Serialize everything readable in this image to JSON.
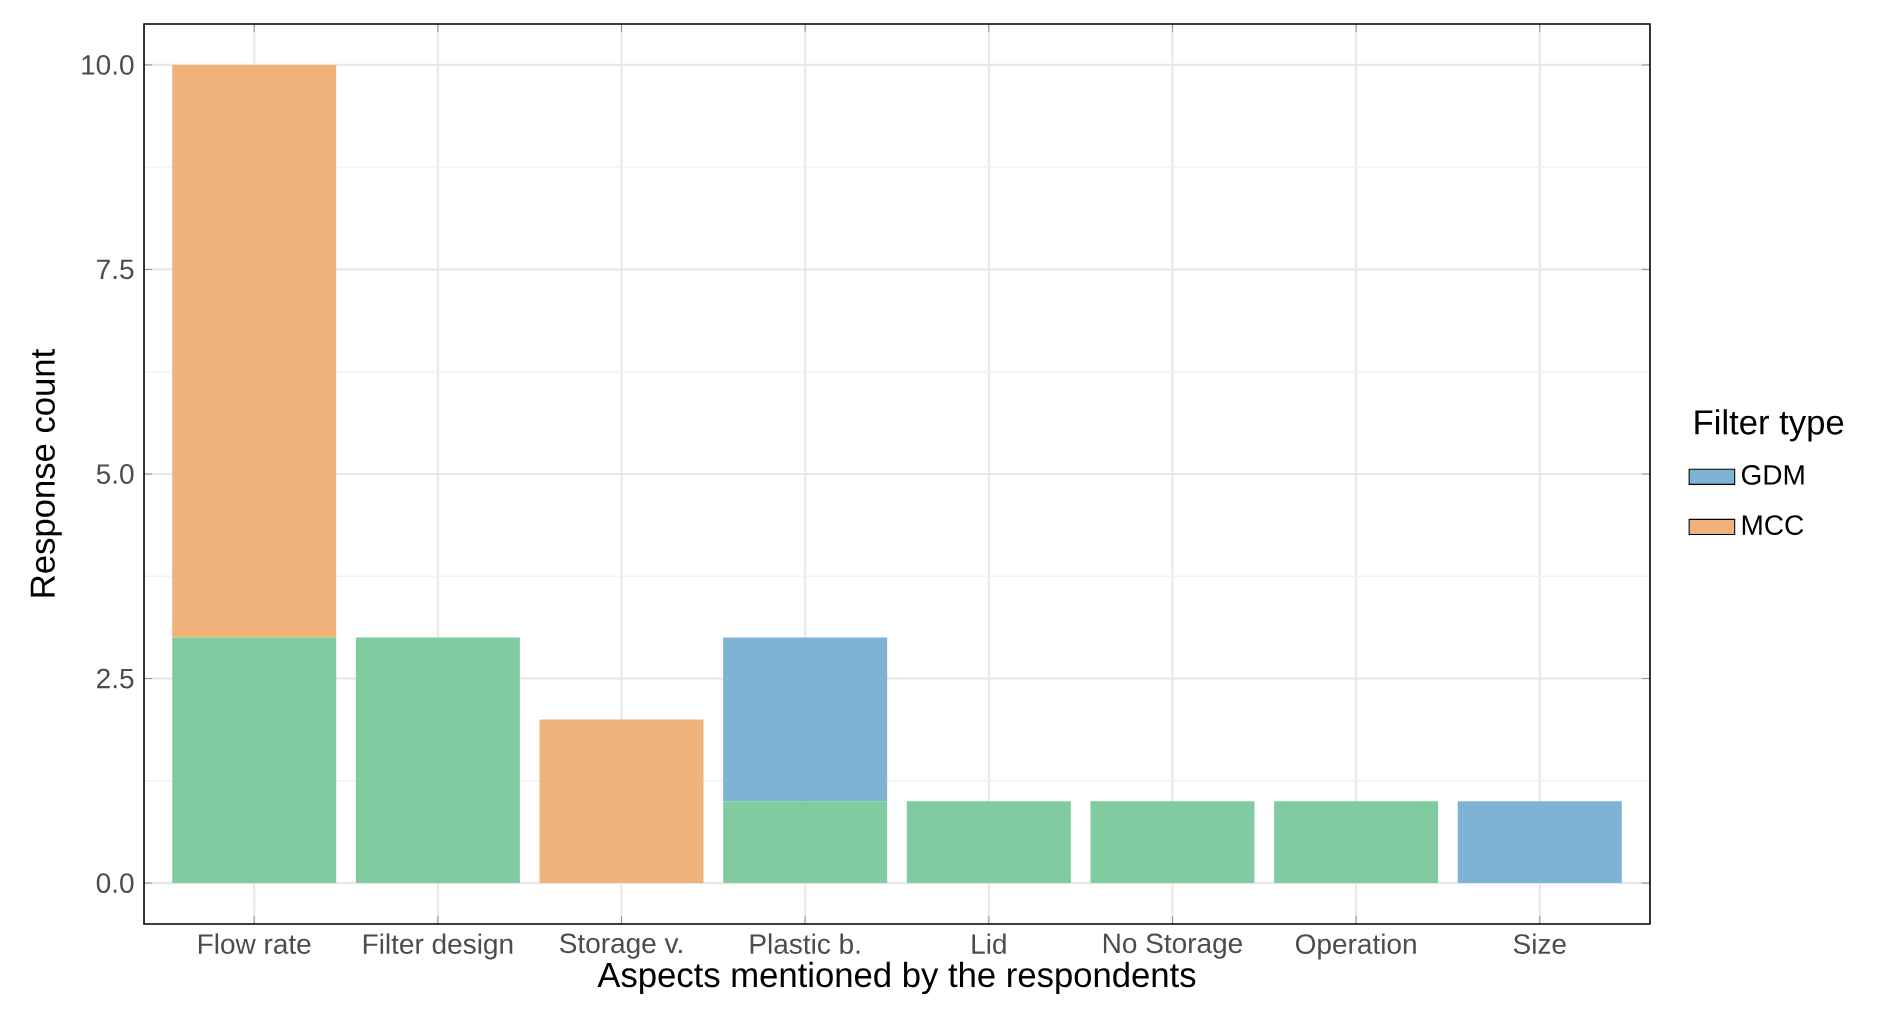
{
  "chart_data": {
    "type": "bar",
    "stacked": true,
    "xlabel": "Aspects mentioned by the respondents",
    "ylabel": "Response count",
    "legend_title": "Filter type",
    "legend": "right",
    "grid": true,
    "categories": [
      "Flow rate",
      "Filter design",
      "Storage v.",
      "Plastic b.",
      "Lid",
      "No Storage",
      "Operation",
      "Size"
    ],
    "series": [
      {
        "color": "#80cba0",
        "values": [
          3,
          3,
          null,
          1,
          1,
          1,
          1,
          null
        ]
      },
      {
        "name": "GDM",
        "color": "#7fb2d5",
        "values": [
          null,
          null,
          null,
          2,
          null,
          null,
          null,
          1
        ]
      },
      {
        "name": "MCC",
        "color": "#efb27b",
        "values": [
          7,
          null,
          2,
          null,
          null,
          null,
          null,
          null
        ]
      }
    ],
    "ylim": [
      -0.5,
      10.5
    ],
    "yticks": [
      {
        "value": 0,
        "label": "0.0"
      },
      {
        "value": 2.5,
        "label": "2.5"
      },
      {
        "value": 5,
        "label": "5.0"
      },
      {
        "value": 7.5,
        "label": "7.5"
      },
      {
        "value": 10,
        "label": "10.0"
      }
    ]
  }
}
